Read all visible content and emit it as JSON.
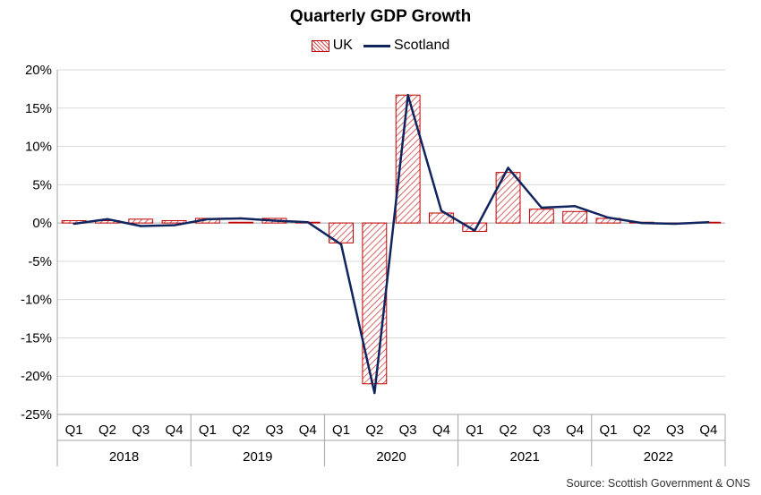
{
  "chart_data": {
    "type": "bar",
    "title": "Quarterly GDP Growth",
    "quarters": [
      "Q1",
      "Q2",
      "Q3",
      "Q4",
      "Q1",
      "Q2",
      "Q3",
      "Q4",
      "Q1",
      "Q2",
      "Q3",
      "Q4",
      "Q1",
      "Q2",
      "Q3",
      "Q4",
      "Q1",
      "Q2",
      "Q3",
      "Q4"
    ],
    "years": [
      "2018",
      "2019",
      "2020",
      "2021",
      "2022"
    ],
    "yticks": [
      "20%",
      "15%",
      "10%",
      "5%",
      "0%",
      "-5%",
      "-10%",
      "-15%",
      "-20%",
      "-25%"
    ],
    "ylim": [
      -25,
      20
    ],
    "series": [
      {
        "name": "UK",
        "type": "bar",
        "color": "#c00000",
        "values": [
          0.3,
          0.3,
          0.5,
          0.3,
          0.6,
          0.1,
          0.6,
          0.1,
          -2.6,
          -21.0,
          16.7,
          1.3,
          -1.1,
          6.6,
          1.8,
          1.5,
          0.6,
          0.1,
          -0.1,
          0.1
        ]
      },
      {
        "name": "Scotland",
        "type": "line",
        "color": "#10245e",
        "values": [
          -0.1,
          0.5,
          -0.4,
          -0.3,
          0.5,
          0.6,
          0.3,
          0.1,
          -2.8,
          -22.2,
          16.7,
          1.6,
          -1.0,
          7.2,
          2.0,
          2.2,
          0.7,
          0.0,
          -0.1,
          0.1
        ]
      }
    ],
    "legend_position": "top-center",
    "grid": true,
    "source": "Source: Scottish Government & ONS"
  }
}
